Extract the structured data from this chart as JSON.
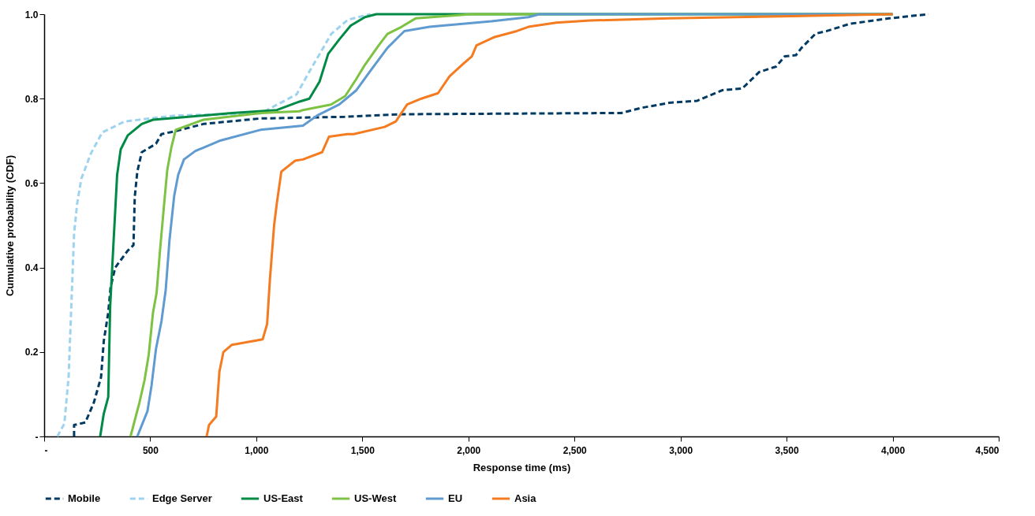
{
  "chart_data": {
    "type": "line",
    "xlabel": "Response time (ms)",
    "ylabel": "Cumulative probability (CDF)",
    "xlim": [
      0,
      4500
    ],
    "ylim": [
      0,
      1
    ],
    "xticks": [
      {
        "value": 0,
        "label": "-"
      },
      500,
      {
        "value": 1000,
        "label": "1,000"
      },
      {
        "value": 1500,
        "label": "1,500"
      },
      {
        "value": 2000,
        "label": "2,000"
      },
      {
        "value": 2500,
        "label": "2,500"
      },
      {
        "value": 3000,
        "label": "3,000"
      },
      {
        "value": 3500,
        "label": "3,500"
      },
      {
        "value": 4000,
        "label": "4,000"
      },
      {
        "value": 4500,
        "label": "4,500"
      }
    ],
    "yticks": [
      {
        "value": 0,
        "label": "-"
      },
      0.2,
      0.4,
      0.6,
      0.8,
      {
        "value": 1,
        "label": "1.0"
      }
    ],
    "grid": false,
    "legend": "bottom",
    "marker": "none",
    "series": [
      {
        "name": "Mobile",
        "color": "#003a63",
        "line_style": "dashed",
        "x": [
          141,
          141,
          194,
          234,
          268,
          281,
          302,
          313,
          335,
          394,
          421,
          427,
          439,
          460,
          527,
          553,
          620,
          751,
          1019,
          1417,
          1685,
          2721,
          2814,
          2945,
          3079,
          3198,
          3291,
          3371,
          3451,
          3491,
          3544,
          3570,
          3637,
          3689,
          3797,
          3983,
          4169
        ],
        "values": [
          0,
          0.027,
          0.033,
          0.08,
          0.14,
          0.226,
          0.293,
          0.353,
          0.4,
          0.44,
          0.453,
          0.567,
          0.627,
          0.673,
          0.693,
          0.716,
          0.723,
          0.74,
          0.753,
          0.757,
          0.763,
          0.766,
          0.778,
          0.79,
          0.795,
          0.82,
          0.824,
          0.863,
          0.876,
          0.9,
          0.903,
          0.92,
          0.954,
          0.96,
          0.977,
          0.99,
          1.0
        ]
      },
      {
        "name": "Edge Server",
        "color": "#9dd3ef",
        "line_style": "dashed",
        "x": [
          62,
          95,
          115,
          141,
          155,
          175,
          220,
          274,
          380,
          620,
          1020,
          1190,
          1257,
          1298,
          1353,
          1432,
          1538
        ],
        "values": [
          0,
          0.03,
          0.14,
          0.48,
          0.55,
          0.61,
          0.67,
          0.72,
          0.746,
          0.76,
          0.765,
          0.81,
          0.87,
          0.905,
          0.953,
          0.987,
          1.0
        ]
      },
      {
        "name": "US-East",
        "color": "#008a45",
        "line_style": "solid",
        "x": [
          264,
          281,
          302,
          311,
          327,
          344,
          361,
          394,
          460,
          513,
          658,
          885,
          1097,
          1204,
          1250,
          1298,
          1339,
          1391,
          1445,
          1512,
          1566,
          4000
        ],
        "values": [
          0,
          0.054,
          0.093,
          0.306,
          0.46,
          0.62,
          0.68,
          0.713,
          0.74,
          0.75,
          0.756,
          0.766,
          0.773,
          0.793,
          0.8,
          0.84,
          0.906,
          0.94,
          0.973,
          0.993,
          1.0,
          1.0
        ]
      },
      {
        "name": "US-West",
        "color": "#7dc242",
        "line_style": "solid",
        "x": [
          407,
          449,
          473,
          493,
          513,
          530,
          546,
          566,
          580,
          599,
          620,
          751,
          1019,
          1204,
          1220,
          1352,
          1419,
          1472,
          1512,
          1577,
          1618,
          1685,
          1751,
          2016,
          4000
        ],
        "values": [
          0,
          0.08,
          0.133,
          0.194,
          0.293,
          0.34,
          0.44,
          0.553,
          0.63,
          0.683,
          0.726,
          0.75,
          0.766,
          0.77,
          0.773,
          0.786,
          0.806,
          0.847,
          0.88,
          0.926,
          0.953,
          0.97,
          0.99,
          1.0,
          1.0
        ]
      },
      {
        "name": "EU",
        "color": "#5f9bd0",
        "line_style": "solid",
        "x": [
          439,
          487,
          506,
          527,
          553,
          573,
          591,
          613,
          632,
          659,
          713,
          826,
          1019,
          1220,
          1287,
          1391,
          1472,
          1538,
          1618,
          1698,
          1817,
          2108,
          2283,
          2335,
          4000
        ],
        "values": [
          0,
          0.06,
          0.12,
          0.207,
          0.273,
          0.347,
          0.466,
          0.57,
          0.62,
          0.656,
          0.676,
          0.7,
          0.726,
          0.736,
          0.76,
          0.786,
          0.82,
          0.866,
          0.92,
          0.96,
          0.97,
          0.983,
          0.993,
          1.0,
          1.0
        ]
      },
      {
        "name": "Asia",
        "color": "#f47b20",
        "line_style": "solid",
        "x": [
          766,
          777,
          811,
          826,
          845,
          885,
          1030,
          1051,
          1064,
          1084,
          1097,
          1118,
          1183,
          1220,
          1310,
          1343,
          1429,
          1459,
          1605,
          1658,
          1711,
          1778,
          1857,
          1911,
          1977,
          2016,
          2038,
          2124,
          2228,
          2283,
          2414,
          2573,
          2945,
          4000
        ],
        "values": [
          0,
          0.027,
          0.047,
          0.153,
          0.2,
          0.217,
          0.23,
          0.266,
          0.37,
          0.5,
          0.553,
          0.627,
          0.653,
          0.656,
          0.673,
          0.71,
          0.716,
          0.716,
          0.733,
          0.746,
          0.786,
          0.8,
          0.813,
          0.853,
          0.883,
          0.9,
          0.926,
          0.946,
          0.96,
          0.97,
          0.98,
          0.985,
          0.99,
          1.0
        ]
      }
    ]
  }
}
